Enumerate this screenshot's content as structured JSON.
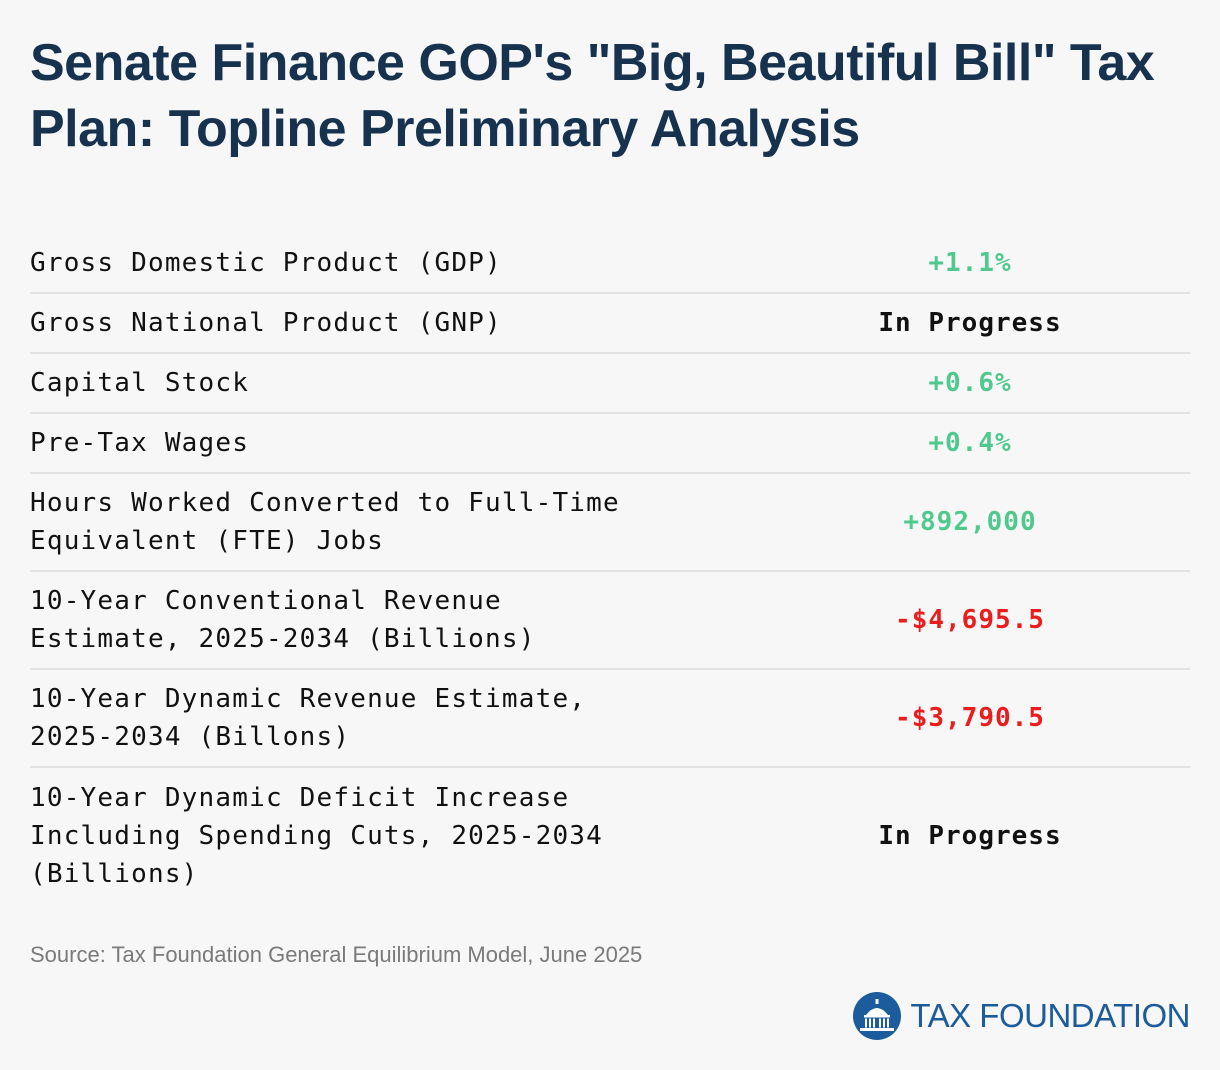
{
  "title": "Senate Finance GOP's \"Big, Beautiful Bill\" Tax Plan: Topline Preliminary Analysis",
  "colors": {
    "title": "#16324f",
    "positive": "#4fc98d",
    "negative": "#ea1c1c",
    "neutral": "#111111",
    "brand": "#1c5b9c"
  },
  "rows": [
    {
      "label": "Gross Domestic Product (GDP)",
      "value": "+1.1%",
      "tone": "positive"
    },
    {
      "label": "Gross National Product (GNP)",
      "value": "In Progress",
      "tone": "neutral"
    },
    {
      "label": "Capital Stock",
      "value": "+0.6%",
      "tone": "positive"
    },
    {
      "label": "Pre-Tax Wages",
      "value": "+0.4%",
      "tone": "positive"
    },
    {
      "label": "Hours Worked Converted to Full-Time\nEquivalent (FTE) Jobs",
      "value": "+892,000",
      "tone": "positive"
    },
    {
      "label": "10-Year Conventional Revenue\nEstimate, 2025-2034 (Billions)",
      "value": "-$4,695.5",
      "tone": "negative"
    },
    {
      "label": "10-Year Dynamic Revenue Estimate,\n2025-2034 (Billons)",
      "value": "-$3,790.5",
      "tone": "negative"
    },
    {
      "label": "10-Year Dynamic Deficit Increase\nIncluding Spending Cuts, 2025-2034\n(Billions)",
      "value": "In Progress",
      "tone": "neutral"
    }
  ],
  "source": "Source: Tax Foundation General Equilibrium Model, June 2025",
  "logo": {
    "text": "TAX FOUNDATION",
    "icon": "capitol-dome-icon"
  }
}
